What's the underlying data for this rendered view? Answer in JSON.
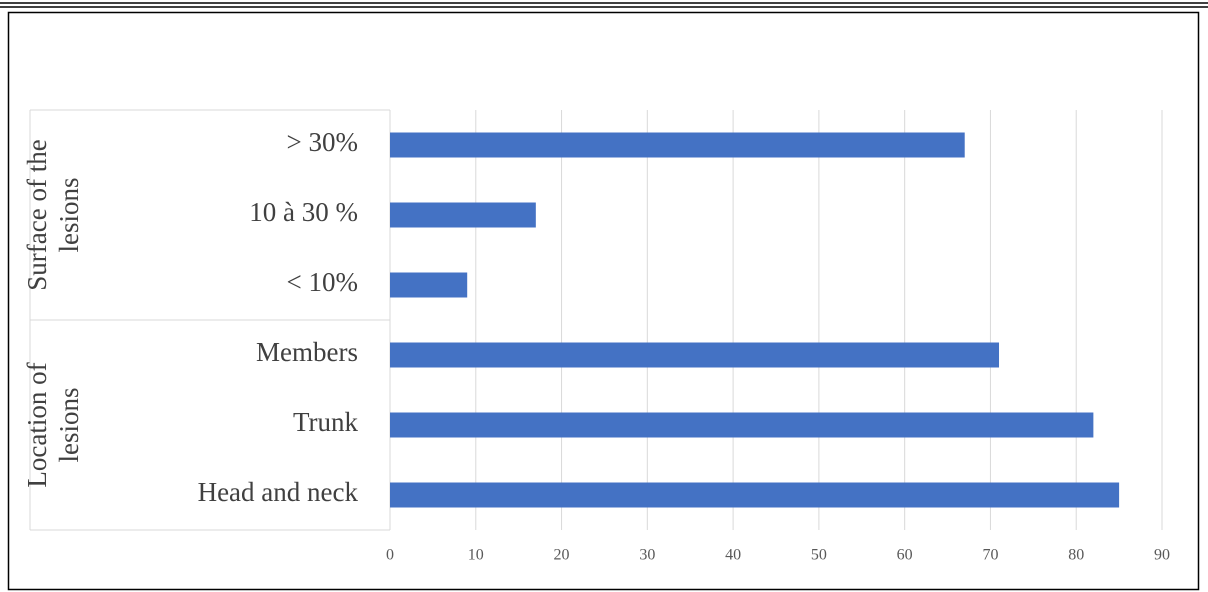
{
  "chart_data": {
    "type": "bar",
    "orientation": "horizontal",
    "color": "#4472c4",
    "grid": true,
    "groups": [
      {
        "label_lines": [
          "Surface of the",
          "lesions"
        ],
        "categories": [
          "> 30%",
          "10 à 30 %",
          "< 10%"
        ],
        "values": [
          67,
          17,
          9
        ]
      },
      {
        "label_lines": [
          "Location of",
          "lesions"
        ],
        "categories": [
          "Members",
          "Trunk",
          "Head and neck"
        ],
        "values": [
          71,
          82,
          85
        ]
      }
    ],
    "xlim": [
      0,
      90
    ],
    "xticks": [
      0,
      10,
      20,
      30,
      40,
      50,
      60,
      70,
      80,
      90
    ]
  }
}
